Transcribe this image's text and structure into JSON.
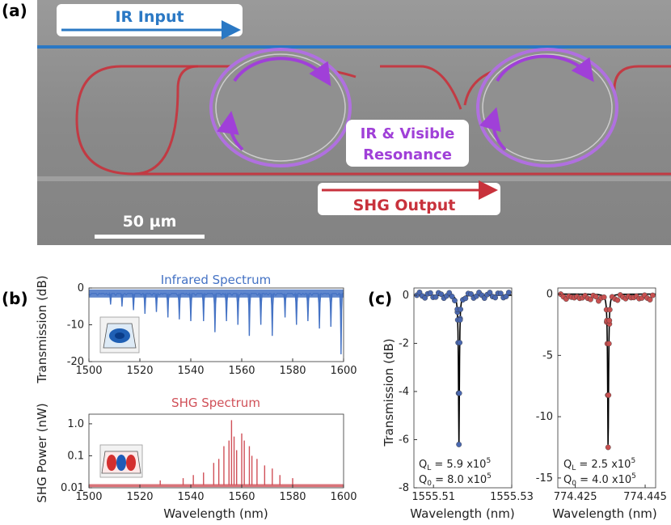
{
  "panel_labels": [
    "(a)",
    "(b)",
    "(c)"
  ],
  "sem": {
    "ir_input": "IR Input",
    "shg_output": "SHG Output",
    "resonance_line1": "IR & Visible",
    "resonance_line2": "Resonance",
    "scale_bar": "50 µm",
    "colors": {
      "ir": "#2a78c4",
      "shg": "#c8323c",
      "resonance": "#a040d8",
      "background": "#8e8e8e"
    }
  },
  "chart_data": [
    {
      "id": "ir_spectrum",
      "type": "line",
      "title": "Infrared Spectrum",
      "xlabel": "",
      "ylabel": "Transmission (dB)",
      "xlim": [
        1500,
        1600
      ],
      "ylim": [
        -20,
        0
      ],
      "xticks": [
        "1500",
        "1520",
        "1540",
        "1560",
        "1580",
        "1600"
      ],
      "yticks": [
        "0",
        "-10",
        "-20"
      ],
      "color": "#4472c4",
      "baseline": -1.5,
      "dips": [
        [
          1508.5,
          -4.5
        ],
        [
          1513,
          -5
        ],
        [
          1517.5,
          -6
        ],
        [
          1522,
          -7
        ],
        [
          1526.5,
          -6.5
        ],
        [
          1531,
          -8
        ],
        [
          1535.5,
          -8.5
        ],
        [
          1540,
          -9
        ],
        [
          1545,
          -9
        ],
        [
          1549.5,
          -12
        ],
        [
          1554,
          -9
        ],
        [
          1558.5,
          -10
        ],
        [
          1563,
          -13
        ],
        [
          1567.5,
          -10
        ],
        [
          1572,
          -13
        ],
        [
          1577,
          -8
        ],
        [
          1581.5,
          -10
        ],
        [
          1586,
          -9
        ],
        [
          1590.5,
          -11
        ],
        [
          1595,
          -10.5
        ],
        [
          1599,
          -18
        ]
      ]
    },
    {
      "id": "shg_spectrum",
      "type": "line",
      "title": "SHG Spectrum",
      "xlabel": "Wavelength (nm)",
      "ylabel": "SHG Power (nW)",
      "xlim": [
        1500,
        1600
      ],
      "ylim": [
        0.01,
        2
      ],
      "yscale": "log",
      "xticks": [
        "1500",
        "1520",
        "1540",
        "1560",
        "1580",
        "1600"
      ],
      "yticks": [
        {
          "v": 1,
          "label": "1.0"
        },
        {
          "v": 0.1,
          "label": "0.1"
        },
        {
          "v": 0.01,
          "label": "0.01"
        }
      ],
      "color": "#d05058",
      "baseline": 0.012,
      "peaks": [
        [
          1528,
          0.017
        ],
        [
          1537,
          0.02
        ],
        [
          1541,
          0.025
        ],
        [
          1545,
          0.03
        ],
        [
          1549,
          0.06
        ],
        [
          1551,
          0.08
        ],
        [
          1553,
          0.2
        ],
        [
          1555,
          0.3
        ],
        [
          1556,
          1.3
        ],
        [
          1557,
          0.4
        ],
        [
          1558,
          0.15
        ],
        [
          1560,
          0.5
        ],
        [
          1561,
          0.3
        ],
        [
          1563,
          0.2
        ],
        [
          1564,
          0.1
        ],
        [
          1566,
          0.08
        ],
        [
          1569,
          0.05
        ],
        [
          1572,
          0.04
        ],
        [
          1575,
          0.025
        ],
        [
          1580,
          0.02
        ]
      ]
    },
    {
      "id": "ir_resonance",
      "type": "scatter",
      "xlabel": "Wavelength (nm)",
      "ylabel": "Transmission (dB)",
      "xlim": [
        1555.505,
        1555.53
      ],
      "ylim": [
        -8,
        0.3
      ],
      "xticks": [
        {
          "v": 1555.51,
          "label": "1555.51"
        },
        {
          "v": 1555.53,
          "label": "1555.53"
        }
      ],
      "yticks": [
        {
          "v": 0,
          "label": "0"
        },
        {
          "v": -2,
          "label": "-2"
        },
        {
          "v": -4,
          "label": "-4"
        },
        {
          "v": -6,
          "label": "-6"
        },
        {
          "v": -8,
          "label": "-8"
        }
      ],
      "color": "#4a68b0",
      "center": 1555.5165,
      "fwhm": 0.00028,
      "depth": -6.3,
      "annotation": [
        "Q_L = 5.9 x10^5",
        "Q_0 = 8.0 x10^5"
      ]
    },
    {
      "id": "shg_resonance",
      "type": "scatter",
      "xlabel": "Wavelength (nm)",
      "ylabel": "",
      "xlim": [
        774.42,
        774.448
      ],
      "ylim": [
        -15.8,
        0.5
      ],
      "xticks": [
        {
          "v": 774.425,
          "label": "774.425"
        },
        {
          "v": 774.445,
          "label": "774.445"
        }
      ],
      "yticks": [
        {
          "v": 0,
          "label": "0"
        },
        {
          "v": -5,
          "label": "-5"
        },
        {
          "v": -10,
          "label": "-10"
        },
        {
          "v": -15,
          "label": "-15"
        }
      ],
      "color": "#c85050",
      "center": 774.4344,
      "fwhm": 0.00033,
      "depth": -12.6,
      "annotation": [
        "Q_L = 2.5 x10^5",
        "Q_0 = 4.0 x10^5"
      ]
    }
  ]
}
